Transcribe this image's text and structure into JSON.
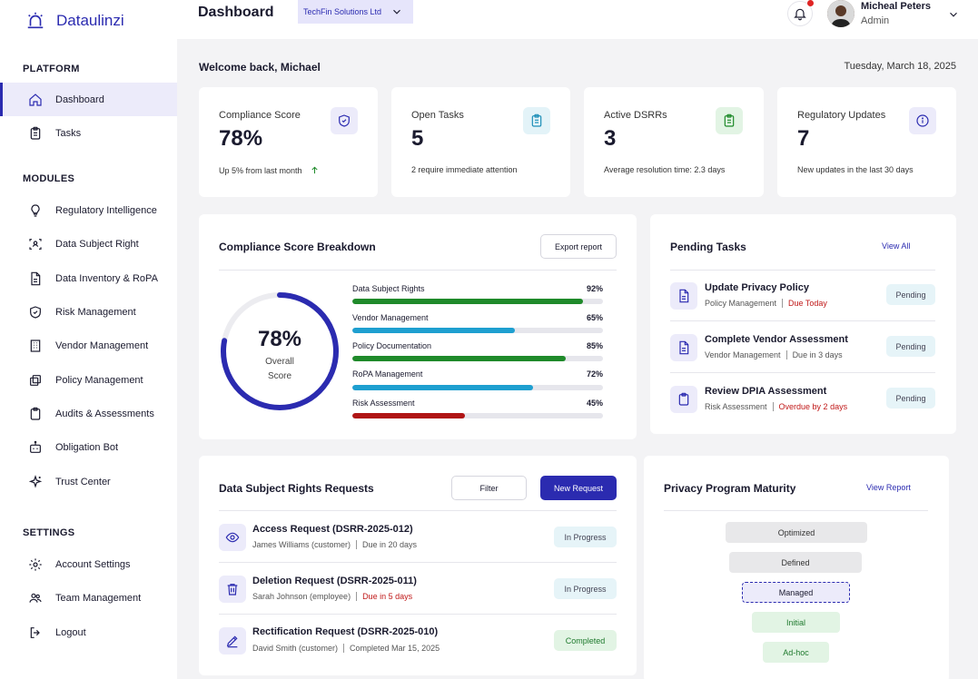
{
  "brand": {
    "name": "Dataulinzi",
    "color": "#2b2bb0"
  },
  "sidebar": {
    "platform_label": "PLATFORM",
    "platform_items": [
      {
        "label": "Dashboard",
        "icon": "home-icon",
        "active": true
      },
      {
        "label": "Tasks",
        "icon": "clipboard-icon"
      }
    ],
    "modules_label": "MODULES",
    "module_items": [
      {
        "label": "Regulatory Intelligence",
        "icon": "lightbulb-icon"
      },
      {
        "label": "Data Subject Right",
        "icon": "scan-user-icon"
      },
      {
        "label": "Data Inventory & RoPA",
        "icon": "document-icon"
      },
      {
        "label": "Risk Management",
        "icon": "shield-icon"
      },
      {
        "label": "Vendor Management",
        "icon": "building-icon"
      },
      {
        "label": "Policy Management",
        "icon": "copy-icon"
      },
      {
        "label": "Audits & Assessments",
        "icon": "clipboard-icon"
      },
      {
        "label": "Obligation Bot",
        "icon": "bot-icon"
      },
      {
        "label": "Trust Center",
        "icon": "sparkle-icon"
      }
    ],
    "settings_label": "SETTINGS",
    "settings_items": [
      {
        "label": "Account Settings",
        "icon": "gear-icon"
      },
      {
        "label": "Team Management",
        "icon": "users-icon"
      },
      {
        "label": "Logout",
        "icon": "logout-icon"
      }
    ]
  },
  "header": {
    "title": "Dashboard",
    "org": "TechFin Solutions Ltd",
    "user_name": "Micheal Peters",
    "user_role": "Admin"
  },
  "welcome": {
    "text": "Welcome back, Michael",
    "date": "Tuesday, March 18, 2025"
  },
  "stats": [
    {
      "label": "Compliance Score",
      "value": "78%",
      "sub": "Up 5% from last month",
      "icon": "shield-icon"
    },
    {
      "label": "Open Tasks",
      "value": "5",
      "sub": "2 require immediate attention",
      "icon": "clipboard-icon"
    },
    {
      "label": "Active DSRRs",
      "value": "3",
      "sub": "Average resolution time: 2.3 days",
      "icon": "clipboard-check-icon"
    },
    {
      "label": "Regulatory Updates",
      "value": "7",
      "sub": "New updates in the last 30 days",
      "icon": "info-icon"
    }
  ],
  "breakdown": {
    "title": "Compliance Score Breakdown",
    "export_label": "Export report",
    "score": "78%",
    "score_value": 78,
    "score_caption_1": "Overall",
    "score_caption_2": "Score",
    "bars": [
      {
        "label": "Data Subject Rights",
        "pct": "92%",
        "value": 92,
        "color": "#1f8a2a"
      },
      {
        "label": "Vendor Management",
        "pct": "65%",
        "value": 65,
        "color": "#1e9fd0"
      },
      {
        "label": "Policy Documentation",
        "pct": "85%",
        "value": 85,
        "color": "#1f8a2a"
      },
      {
        "label": "RoPA Management",
        "pct": "72%",
        "value": 72,
        "color": "#1e9fd0"
      },
      {
        "label": "Risk Assessment",
        "pct": "45%",
        "value": 45,
        "color": "#b01515"
      }
    ]
  },
  "pending": {
    "title": "Pending Tasks",
    "view_all": "View All",
    "items": [
      {
        "title": "Update Privacy Policy",
        "module": "Policy Management",
        "due": "Due Today",
        "due_red": true,
        "status": "Pending",
        "icon": "document-icon"
      },
      {
        "title": "Complete Vendor Assessment",
        "module": "Vendor Management",
        "due": "Due in 3 days",
        "due_red": false,
        "status": "Pending",
        "icon": "document-icon"
      },
      {
        "title": "Review DPIA Assessment",
        "module": "Risk Assessment",
        "due": "Overdue by 2 days",
        "due_red": true,
        "status": "Pending",
        "icon": "clipboard-icon"
      }
    ]
  },
  "dsrr": {
    "title": "Data Subject Rights Requests",
    "filter_label": "Filter",
    "new_label": "New Request",
    "items": [
      {
        "title": "Access Request (DSRR-2025-012)",
        "person": "James Williams (customer)",
        "due": "Due in 20 days",
        "due_red": false,
        "status": "In Progress",
        "icon": "eye-icon"
      },
      {
        "title": "Deletion Request (DSRR-2025-011)",
        "person": "Sarah Johnson (employee)",
        "due": "Due in 5 days",
        "due_red": true,
        "status": "In Progress",
        "icon": "trash-icon"
      },
      {
        "title": "Rectification Request (DSRR-2025-010)",
        "person": "David Smith (customer)",
        "due": "Completed Mar 15, 2025",
        "due_red": false,
        "status": "Completed",
        "icon": "pencil-icon"
      }
    ]
  },
  "maturity": {
    "title": "Privacy Program Maturity",
    "view_report": "View Report",
    "levels": [
      {
        "label": "Optimized"
      },
      {
        "label": "Defined"
      },
      {
        "label": "Managed",
        "current": true
      },
      {
        "label": "Initial"
      },
      {
        "label": "Ad-hoc"
      }
    ]
  }
}
